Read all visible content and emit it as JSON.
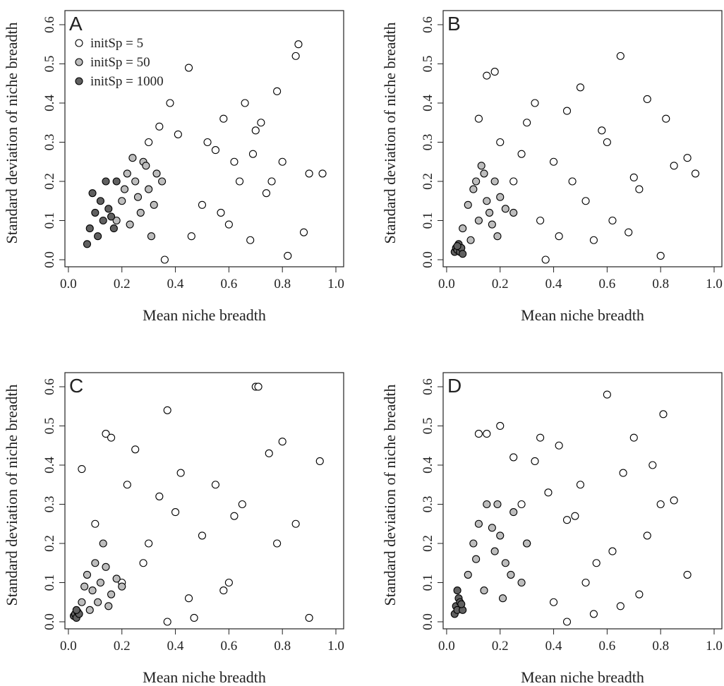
{
  "chart_data": [
    {
      "type": "scatter",
      "panel": "A",
      "xlabel": "Mean niche breadth",
      "ylabel": "Standard deviation of niche breadth",
      "xlim": [
        -0.013,
        1.029
      ],
      "ylim": [
        -0.018,
        0.636
      ],
      "xticks": [
        {
          "value": 0,
          "label": "0.0"
        },
        {
          "value": 0.2,
          "label": "0.2"
        },
        {
          "value": 0.4,
          "label": "0.4"
        },
        {
          "value": 0.6,
          "label": "0.6"
        },
        {
          "value": 0.8,
          "label": "0.8"
        },
        {
          "value": 1,
          "label": "1.0"
        }
      ],
      "yticks": [
        {
          "value": 0,
          "label": "0.0"
        },
        {
          "value": 0.1,
          "label": "0.1"
        },
        {
          "value": 0.2,
          "label": "0.2"
        },
        {
          "value": 0.3,
          "label": "0.3"
        },
        {
          "value": 0.4,
          "label": "0.4"
        },
        {
          "value": 0.5,
          "label": "0.5"
        },
        {
          "value": 0.6,
          "label": "0.6"
        }
      ],
      "legend": "top-left",
      "series": [
        {
          "name": "initSp = 5",
          "color": "#ffffff",
          "x": [
            0.45,
            0.52,
            0.58,
            0.62,
            0.66,
            0.7,
            0.74,
            0.78,
            0.82,
            0.86,
            0.9,
            0.95,
            0.38,
            0.36,
            0.41,
            0.5,
            0.55,
            0.6,
            0.64,
            0.68,
            0.72,
            0.8,
            0.85,
            0.88,
            0.3,
            0.34,
            0.46,
            0.57,
            0.69,
            0.76
          ],
          "values": [
            0.49,
            0.3,
            0.36,
            0.25,
            0.4,
            0.33,
            0.17,
            0.43,
            0.01,
            0.55,
            0.22,
            0.22,
            0.4,
            0.0,
            0.32,
            0.14,
            0.28,
            0.09,
            0.2,
            0.05,
            0.35,
            0.25,
            0.52,
            0.07,
            0.3,
            0.34,
            0.06,
            0.12,
            0.27,
            0.2
          ]
        },
        {
          "name": "initSp = 50",
          "color": "#bdbdbd",
          "x": [
            0.2,
            0.22,
            0.25,
            0.28,
            0.3,
            0.32,
            0.35,
            0.18,
            0.24,
            0.27,
            0.31,
            0.33,
            0.21,
            0.26,
            0.29,
            0.23
          ],
          "values": [
            0.15,
            0.22,
            0.2,
            0.25,
            0.18,
            0.14,
            0.2,
            0.1,
            0.26,
            0.12,
            0.06,
            0.22,
            0.18,
            0.16,
            0.24,
            0.09
          ]
        },
        {
          "name": "initSp = 1000",
          "color": "#606060",
          "x": [
            0.07,
            0.08,
            0.1,
            0.11,
            0.12,
            0.13,
            0.14,
            0.15,
            0.17,
            0.09,
            0.16,
            0.18
          ],
          "values": [
            0.04,
            0.08,
            0.12,
            0.06,
            0.15,
            0.1,
            0.2,
            0.13,
            0.08,
            0.17,
            0.11,
            0.2
          ]
        }
      ]
    },
    {
      "type": "scatter",
      "panel": "B",
      "xlabel": "Mean niche breadth",
      "ylabel": "Standard deviation of niche breadth",
      "xlim": [
        -0.013,
        1.029
      ],
      "ylim": [
        -0.018,
        0.636
      ],
      "xticks": [
        {
          "value": 0,
          "label": "0.0"
        },
        {
          "value": 0.2,
          "label": "0.2"
        },
        {
          "value": 0.4,
          "label": "0.4"
        },
        {
          "value": 0.6,
          "label": "0.6"
        },
        {
          "value": 0.8,
          "label": "0.8"
        },
        {
          "value": 1,
          "label": "1.0"
        }
      ],
      "yticks": [
        {
          "value": 0,
          "label": "0.0"
        },
        {
          "value": 0.1,
          "label": "0.1"
        },
        {
          "value": 0.2,
          "label": "0.2"
        },
        {
          "value": 0.3,
          "label": "0.3"
        },
        {
          "value": 0.4,
          "label": "0.4"
        },
        {
          "value": 0.5,
          "label": "0.5"
        },
        {
          "value": 0.6,
          "label": "0.6"
        }
      ],
      "series": [
        {
          "color": "#ffffff",
          "x": [
            0.15,
            0.18,
            0.2,
            0.25,
            0.3,
            0.35,
            0.4,
            0.45,
            0.5,
            0.55,
            0.6,
            0.65,
            0.7,
            0.75,
            0.8,
            0.85,
            0.9,
            0.93,
            0.37,
            0.52,
            0.62,
            0.68,
            0.82,
            0.28,
            0.42,
            0.58,
            0.72,
            0.12,
            0.33,
            0.47
          ],
          "values": [
            0.47,
            0.48,
            0.3,
            0.2,
            0.35,
            0.1,
            0.25,
            0.38,
            0.44,
            0.05,
            0.3,
            0.52,
            0.21,
            0.41,
            0.01,
            0.24,
            0.26,
            0.22,
            0.0,
            0.15,
            0.1,
            0.07,
            0.36,
            0.27,
            0.06,
            0.33,
            0.18,
            0.36,
            0.4,
            0.2
          ]
        },
        {
          "color": "#bdbdbd",
          "x": [
            0.06,
            0.08,
            0.1,
            0.12,
            0.14,
            0.16,
            0.18,
            0.2,
            0.22,
            0.25,
            0.09,
            0.13,
            0.17,
            0.11,
            0.15,
            0.19
          ],
          "values": [
            0.08,
            0.14,
            0.18,
            0.1,
            0.22,
            0.12,
            0.2,
            0.16,
            0.13,
            0.12,
            0.05,
            0.24,
            0.09,
            0.2,
            0.15,
            0.06
          ]
        },
        {
          "color": "#606060",
          "x": [
            0.03,
            0.035,
            0.04,
            0.045,
            0.05,
            0.055,
            0.06,
            0.04
          ],
          "values": [
            0.02,
            0.03,
            0.025,
            0.04,
            0.02,
            0.03,
            0.015,
            0.035
          ]
        }
      ]
    },
    {
      "type": "scatter",
      "panel": "C",
      "xlabel": "Mean niche breadth",
      "ylabel": "Standard deviation of niche breadth",
      "xlim": [
        -0.013,
        1.029
      ],
      "ylim": [
        -0.018,
        0.636
      ],
      "xticks": [
        {
          "value": 0,
          "label": "0.0"
        },
        {
          "value": 0.2,
          "label": "0.2"
        },
        {
          "value": 0.4,
          "label": "0.4"
        },
        {
          "value": 0.6,
          "label": "0.6"
        },
        {
          "value": 0.8,
          "label": "0.8"
        },
        {
          "value": 1,
          "label": "1.0"
        }
      ],
      "yticks": [
        {
          "value": 0,
          "label": "0.0"
        },
        {
          "value": 0.1,
          "label": "0.1"
        },
        {
          "value": 0.2,
          "label": "0.2"
        },
        {
          "value": 0.3,
          "label": "0.3"
        },
        {
          "value": 0.4,
          "label": "0.4"
        },
        {
          "value": 0.5,
          "label": "0.5"
        },
        {
          "value": 0.6,
          "label": "0.6"
        }
      ],
      "series": [
        {
          "color": "#ffffff",
          "x": [
            0.05,
            0.1,
            0.14,
            0.16,
            0.2,
            0.25,
            0.3,
            0.34,
            0.37,
            0.4,
            0.45,
            0.5,
            0.55,
            0.6,
            0.65,
            0.7,
            0.71,
            0.75,
            0.8,
            0.85,
            0.9,
            0.94,
            0.37,
            0.47,
            0.62,
            0.22,
            0.28,
            0.42,
            0.58,
            0.78
          ],
          "values": [
            0.39,
            0.25,
            0.48,
            0.47,
            0.1,
            0.44,
            0.2,
            0.32,
            0.54,
            0.28,
            0.06,
            0.22,
            0.35,
            0.1,
            0.3,
            0.6,
            0.6,
            0.43,
            0.46,
            0.25,
            0.01,
            0.41,
            0.0,
            0.01,
            0.27,
            0.35,
            0.15,
            0.38,
            0.08,
            0.2
          ]
        },
        {
          "color": "#bdbdbd",
          "x": [
            0.05,
            0.07,
            0.09,
            0.1,
            0.12,
            0.14,
            0.16,
            0.18,
            0.2,
            0.08,
            0.13,
            0.11,
            0.15,
            0.06
          ],
          "values": [
            0.05,
            0.12,
            0.08,
            0.15,
            0.1,
            0.14,
            0.07,
            0.11,
            0.09,
            0.03,
            0.2,
            0.05,
            0.04,
            0.09
          ]
        },
        {
          "color": "#606060",
          "x": [
            0.02,
            0.025,
            0.03,
            0.035,
            0.04,
            0.03
          ],
          "values": [
            0.015,
            0.02,
            0.01,
            0.025,
            0.02,
            0.03
          ]
        }
      ]
    },
    {
      "type": "scatter",
      "panel": "D",
      "xlabel": "Mean niche breadth",
      "ylabel": "Standard deviation of niche breadth",
      "xlim": [
        -0.013,
        1.029
      ],
      "ylim": [
        -0.018,
        0.636
      ],
      "xticks": [
        {
          "value": 0,
          "label": "0.0"
        },
        {
          "value": 0.2,
          "label": "0.2"
        },
        {
          "value": 0.4,
          "label": "0.4"
        },
        {
          "value": 0.6,
          "label": "0.6"
        },
        {
          "value": 0.8,
          "label": "0.8"
        },
        {
          "value": 1,
          "label": "1.0"
        }
      ],
      "yticks": [
        {
          "value": 0,
          "label": "0.0"
        },
        {
          "value": 0.1,
          "label": "0.1"
        },
        {
          "value": 0.2,
          "label": "0.2"
        },
        {
          "value": 0.3,
          "label": "0.3"
        },
        {
          "value": 0.4,
          "label": "0.4"
        },
        {
          "value": 0.5,
          "label": "0.5"
        },
        {
          "value": 0.6,
          "label": "0.6"
        }
      ],
      "series": [
        {
          "color": "#ffffff",
          "x": [
            0.12,
            0.15,
            0.2,
            0.25,
            0.3,
            0.35,
            0.4,
            0.45,
            0.5,
            0.55,
            0.6,
            0.65,
            0.7,
            0.75,
            0.8,
            0.81,
            0.85,
            0.9,
            0.38,
            0.45,
            0.56,
            0.66,
            0.72,
            0.28,
            0.48,
            0.62,
            0.33,
            0.42,
            0.52,
            0.77
          ],
          "values": [
            0.48,
            0.48,
            0.5,
            0.42,
            0.2,
            0.47,
            0.05,
            0.0,
            0.35,
            0.02,
            0.58,
            0.04,
            0.47,
            0.22,
            0.3,
            0.53,
            0.31,
            0.12,
            0.33,
            0.26,
            0.15,
            0.38,
            0.07,
            0.3,
            0.27,
            0.18,
            0.41,
            0.45,
            0.1,
            0.4
          ]
        },
        {
          "color": "#bdbdbd",
          "x": [
            0.08,
            0.1,
            0.12,
            0.15,
            0.18,
            0.2,
            0.22,
            0.25,
            0.28,
            0.3,
            0.14,
            0.17,
            0.21,
            0.24,
            0.11,
            0.19
          ],
          "values": [
            0.12,
            0.2,
            0.25,
            0.3,
            0.18,
            0.22,
            0.15,
            0.28,
            0.1,
            0.2,
            0.08,
            0.24,
            0.06,
            0.12,
            0.16,
            0.3
          ]
        },
        {
          "color": "#606060",
          "x": [
            0.03,
            0.035,
            0.04,
            0.045,
            0.05,
            0.06,
            0.04,
            0.055
          ],
          "values": [
            0.02,
            0.04,
            0.03,
            0.06,
            0.05,
            0.03,
            0.08,
            0.045
          ]
        }
      ]
    }
  ]
}
